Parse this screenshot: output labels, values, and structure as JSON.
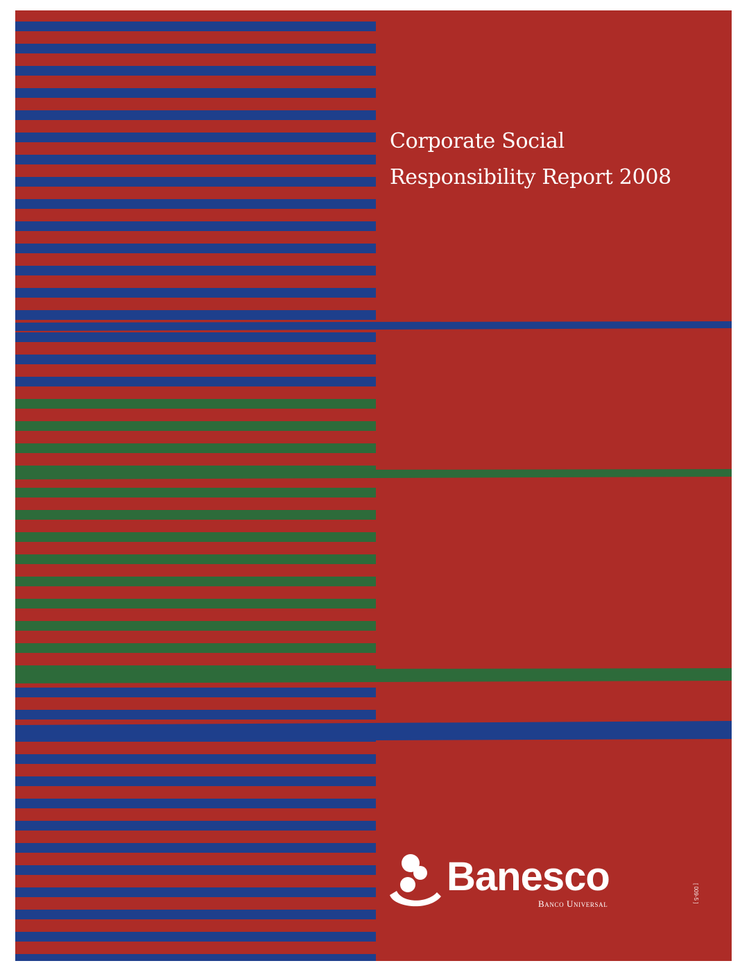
{
  "document": {
    "title_line1": "Corporate Social",
    "title_line2": "Responsibility Report 2008"
  },
  "logo": {
    "brand": "Banesco",
    "tagline": "Banco Universal",
    "icon": "banesco-figure-icon"
  },
  "footer_code": "[ 009-5 ]",
  "colors": {
    "background": "#ad2c27",
    "stripe_blue": "#1e3f8c",
    "stripe_green": "#2d6b3a",
    "text": "#ffffff",
    "page": "#ffffff"
  }
}
